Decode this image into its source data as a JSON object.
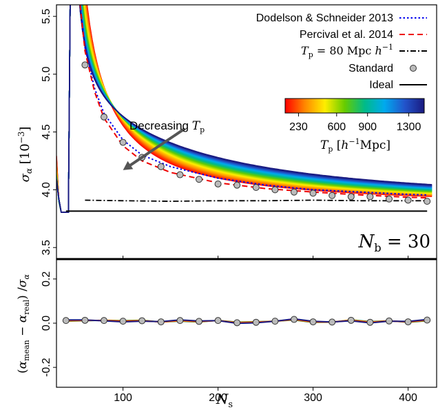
{
  "chart_data": [
    {
      "type": "line",
      "panel": "top",
      "ylabel": "σ_α [10⁻³]",
      "ylim": [
        3.4,
        5.6
      ],
      "xlim": [
        30,
        430
      ],
      "yticks": [
        "3.5",
        "4.0",
        "4.5",
        "5.0",
        "5.5"
      ],
      "ytick_values": [
        3.5,
        4.0,
        4.5,
        5.0,
        5.5
      ],
      "legend": {
        "placement": "top-right",
        "entries": [
          {
            "label": "Dodelson & Schneider 2013",
            "style": "dotted",
            "color": "#0000ee"
          },
          {
            "label": "Percival et al. 2014",
            "style": "dashed",
            "color": "#ee0000"
          },
          {
            "label": "T_p = 80 Mpc h⁻¹",
            "style": "dashdot",
            "color": "#000000"
          },
          {
            "label": "Standard",
            "style": "marker",
            "color": "#bbbbbb"
          },
          {
            "label": "Ideal",
            "style": "solid",
            "color": "#000000"
          }
        ]
      },
      "colorbar": {
        "label": "T_p [h⁻¹Mpc]",
        "ticks": [
          "230",
          "600",
          "900",
          "1300"
        ],
        "tick_values": [
          230,
          600,
          900,
          1300
        ],
        "range": [
          100,
          1450
        ],
        "colors": [
          "#ff0000",
          "#ff8800",
          "#ffee00",
          "#66cc00",
          "#00bb88",
          "#00aaee",
          "#2255cc",
          "#1a1a80"
        ]
      },
      "annotations": [
        {
          "text": "Decreasing T_p",
          "at": [
            125,
            4.51
          ],
          "arrow_to": [
            100,
            4.17
          ]
        },
        {
          "text": "N_b = 30",
          "at": [
            395,
            3.6
          ]
        }
      ],
      "series": [
        {
          "name": "Dodelson & Schneider 2013",
          "x": [
            44,
            50,
            60,
            70,
            80,
            100,
            120,
            150,
            200,
            250,
            300,
            350,
            400,
            420
          ],
          "y": [
            5.6,
            5.97,
            5.23,
            4.88,
            4.66,
            4.43,
            4.3,
            4.2,
            4.1,
            4.04,
            4.0,
            3.98,
            3.96,
            3.955
          ]
        },
        {
          "name": "Percival et al. 2014",
          "x": [
            55,
            60,
            70,
            80,
            100,
            120,
            150,
            200,
            250,
            300,
            350,
            400,
            420
          ],
          "y": [
            5.6,
            5.2,
            4.85,
            4.62,
            4.38,
            4.25,
            4.15,
            4.06,
            4.01,
            3.98,
            3.955,
            3.935,
            3.93
          ]
        },
        {
          "name": "T_p = 80 Mpc h⁻¹",
          "x": [
            60,
            100,
            150,
            200,
            250,
            300,
            350,
            400,
            420
          ],
          "y": [
            3.91,
            3.905,
            3.9,
            3.905,
            3.905,
            3.91,
            3.905,
            3.905,
            3.905
          ]
        },
        {
          "name": "Standard",
          "x": [
            60,
            80,
            100,
            120,
            140,
            160,
            180,
            200,
            220,
            240,
            260,
            280,
            300,
            320,
            340,
            360,
            380,
            400,
            420
          ],
          "y": [
            5.08,
            4.63,
            4.41,
            4.28,
            4.2,
            4.13,
            4.09,
            4.05,
            4.04,
            4.02,
            4.0,
            3.98,
            3.97,
            3.95,
            3.94,
            3.94,
            3.92,
            3.91,
            3.9
          ]
        },
        {
          "name": "Ideal",
          "x": [
            40,
            420
          ],
          "y": [
            3.815,
            3.815
          ]
        }
      ]
    },
    {
      "type": "line",
      "panel": "bottom",
      "ylabel": "(α_mean − α_real)/σ_α",
      "xlabel": "N_s",
      "ylim": [
        -0.29,
        0.29
      ],
      "xlim": [
        30,
        430
      ],
      "yticks": [
        "-0.2",
        "0.0",
        "0.2"
      ],
      "ytick_values": [
        -0.2,
        0.0,
        0.2
      ],
      "xticks": [
        "100",
        "200",
        "300",
        "400"
      ],
      "xtick_values": [
        100,
        200,
        300,
        400
      ],
      "series": [
        {
          "name": "Standard",
          "x": [
            40,
            60,
            80,
            100,
            120,
            140,
            160,
            180,
            200,
            220,
            240,
            260,
            280,
            300,
            320,
            340,
            360,
            380,
            400,
            420
          ],
          "y": [
            0.012,
            0.013,
            0.012,
            0.009,
            0.011,
            0.006,
            0.012,
            0.008,
            0.012,
            0.002,
            0.004,
            0.009,
            0.017,
            0.006,
            0.005,
            0.013,
            0.004,
            0.01,
            0.006,
            0.014
          ]
        }
      ]
    }
  ]
}
